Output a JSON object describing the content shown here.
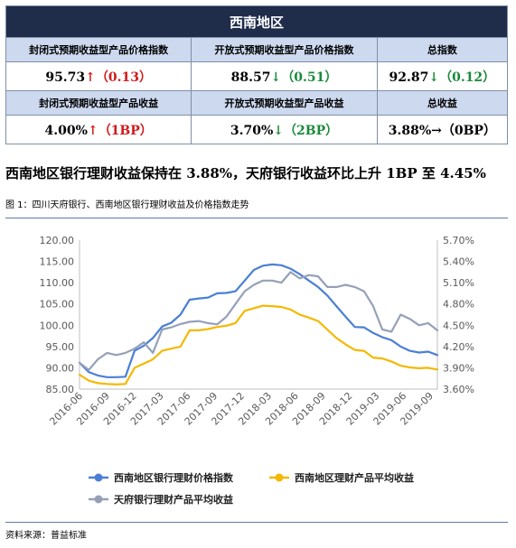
{
  "summary": {
    "title": "西南地区",
    "row1_labels": [
      "封闭式预期收益型产品价格指数",
      "开放式预期收益型产品价格指数",
      "总指数"
    ],
    "row1_values": [
      {
        "value": "95.73",
        "arrow": "↑",
        "change": "（0.13）",
        "dir": "up"
      },
      {
        "value": "88.57",
        "arrow": "↓",
        "change": "（0.51）",
        "dir": "down"
      },
      {
        "value": "92.87",
        "arrow": "↓",
        "change": "（0.12）",
        "dir": "down"
      }
    ],
    "row2_labels": [
      "封闭式预期收益型产品收益",
      "开放式预期收益型产品收益",
      "总收益"
    ],
    "row2_values": [
      {
        "value": "4.00%",
        "arrow": "↑",
        "change": "（1BP）",
        "dir": "up"
      },
      {
        "value": "3.70%",
        "arrow": "↓",
        "change": "（2BP）",
        "dir": "down"
      },
      {
        "value": "3.88%",
        "arrow": "→",
        "change": "（0BP）",
        "dir": "flat"
      }
    ]
  },
  "headline": "西南地区银行理财收益保持在 3.88%，天府银行收益环比上升 1BP 至 4.45%",
  "figure_title": "图 1：四川天府银行、西南地区银行理财收益及价格指数走势",
  "source": "资料来源：普益标准",
  "colors": {
    "blue": "#4a7fd6",
    "yellow": "#f5b800",
    "gray": "#95a0b8"
  },
  "chart_data": {
    "type": "line",
    "x_ticks": [
      "2016-06",
      "2016-09",
      "2016-12",
      "2017-03",
      "2017-06",
      "2017-09",
      "2017-12",
      "2018-03",
      "2018-06",
      "2018-09",
      "2018-12",
      "2019-03",
      "2019-06",
      "2019-09"
    ],
    "left_axis": {
      "min": 85,
      "max": 120,
      "step": 5,
      "tick_labels": [
        "85.00",
        "90.00",
        "95.00",
        "100.00",
        "105.00",
        "110.00",
        "115.00",
        "120.00"
      ]
    },
    "right_axis": {
      "min": 3.6,
      "max": 5.7,
      "step": 0.3,
      "tick_labels": [
        "3.60%",
        "3.90%",
        "4.20%",
        "4.50%",
        "4.80%",
        "5.10%",
        "5.40%",
        "5.70%"
      ]
    },
    "n_points": 40,
    "series": [
      {
        "name": "西南地区银行理财价格指数",
        "axis": "left",
        "color": "#4a7fd6",
        "values": [
          91.2,
          89.0,
          88.2,
          87.8,
          87.8,
          87.9,
          94.0,
          95.2,
          97.0,
          99.7,
          100.6,
          102.5,
          106.0,
          106.3,
          106.5,
          107.5,
          107.6,
          108.0,
          110.5,
          113.0,
          114.0,
          114.3,
          114.1,
          113.3,
          112.0,
          110.5,
          109.0,
          107.0,
          104.5,
          102.0,
          99.6,
          99.5,
          98.2,
          97.2,
          96.5,
          95.0,
          94.0,
          93.6,
          93.8,
          93.0
        ]
      },
      {
        "name": "西南地区理财产品平均收益",
        "axis": "left",
        "color": "#f5b800",
        "values": [
          88.4,
          87.0,
          86.4,
          86.2,
          86.1,
          86.2,
          90.0,
          91.0,
          92.0,
          94.0,
          94.5,
          95.0,
          98.8,
          98.8,
          99.1,
          99.6,
          99.9,
          100.5,
          103.4,
          104.0,
          104.6,
          104.5,
          104.3,
          103.7,
          102.5,
          101.8,
          101.0,
          99.0,
          97.0,
          95.5,
          94.2,
          94.0,
          92.4,
          92.2,
          91.5,
          90.5,
          90.1,
          89.9,
          90.0,
          89.6
        ]
      },
      {
        "name": "天府银行理财产品平均收益",
        "axis": "left",
        "color": "#95a0b8",
        "values": [
          91.2,
          89.5,
          92.0,
          93.5,
          93.0,
          93.5,
          94.5,
          96.0,
          93.5,
          99.0,
          99.5,
          100.3,
          100.8,
          101.0,
          100.5,
          100.2,
          102.0,
          105.0,
          108.0,
          109.5,
          110.5,
          110.5,
          110.0,
          112.5,
          111.0,
          111.8,
          111.5,
          109.0,
          109.0,
          109.5,
          109.0,
          108.0,
          104.5,
          99.0,
          98.5,
          102.5,
          101.5,
          100.0,
          100.5,
          98.8
        ]
      }
    ],
    "legend_placement": "bottom",
    "grid": false
  }
}
